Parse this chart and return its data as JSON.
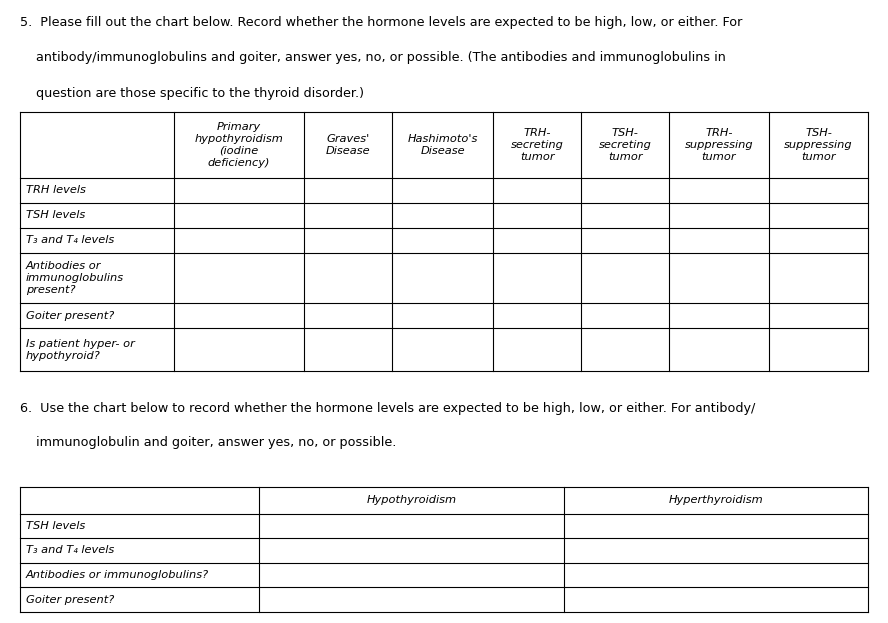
{
  "table1_col_headers": [
    "",
    "Primary\nhypothyroidism\n(iodine\ndeficiency)",
    "Graves'\nDisease",
    "Hashimoto's\nDisease",
    "TRH-\nsecreting\ntumor",
    "TSH-\nsecreting\ntumor",
    "TRH-\nsuppressing\ntumor",
    "TSH-\nsuppressing\ntumor"
  ],
  "table1_row_headers": [
    "TRH levels",
    "TSH levels",
    "T₃ and T₄ levels",
    "Antibodies or\nimmunoglobulins\npresent?",
    "Goiter present?",
    "Is patient hyper- or\nhypothyroid?"
  ],
  "table2_col_headers": [
    "",
    "Hypothyroidism",
    "Hyperthyroidism"
  ],
  "table2_row_headers": [
    "TSH levels",
    "T₃ and T₄ levels",
    "Antibodies or immunoglobulins?",
    "Goiter present?"
  ],
  "q5_lines": [
    "5.  Please fill out the chart below. Record whether the hormone levels are expected to be high, low, or either. For",
    "    antibody/immunoglobulins and goiter, answer yes, no, or possible. (The antibodies and immunoglobulins in",
    "    question are those specific to the thyroid disorder.)"
  ],
  "q6_lines": [
    "6.  Use the chart below to record whether the hormone levels are expected to be high, low, or either. For antibody/",
    "    immunoglobulin and goiter, answer yes, no, or possible."
  ],
  "bg_color": "#ffffff",
  "text_color": "#000000",
  "line_color": "#000000",
  "font_size_question": 9.2,
  "font_size_cell": 8.2,
  "font_size_header": 8.2
}
